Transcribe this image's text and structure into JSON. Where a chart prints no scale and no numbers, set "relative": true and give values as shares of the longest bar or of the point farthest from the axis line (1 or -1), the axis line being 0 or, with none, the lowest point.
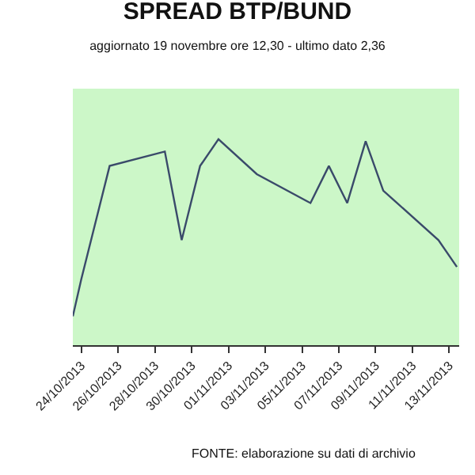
{
  "chart_data": {
    "type": "line",
    "title": "SPREAD BTP/BUND",
    "subtitle": "aggiornato 19 novembre ore 12,30 - ultimo dato 2,36",
    "annotations": [
      "FONTE: elaborazione su dati di archivio"
    ],
    "relative": true,
    "x": [
      "2013-10-23T13:00",
      "2013-10-24T00:00",
      "2013-10-25T13:00",
      "2013-10-28T13:00",
      "2013-10-29T11:00",
      "2013-10-30T11:00",
      "2013-10-31T11:00",
      "2013-11-02T13:00",
      "2013-11-05T11:00",
      "2013-11-06T11:00",
      "2013-11-07T11:00",
      "2013-11-08T11:00",
      "2013-11-09T10:00",
      "2013-11-12T10:00",
      "2013-11-13T10:00"
    ],
    "series": [
      {
        "color": "#3a4a6a",
        "values": [
          0.14,
          0.32,
          0.87,
          0.94,
          0.51,
          0.87,
          1.0,
          0.83,
          0.69,
          0.87,
          0.69,
          0.99,
          0.75,
          0.51,
          0.38
        ]
      }
    ],
    "xlim": [
      "2013-10-23T13:00",
      "2013-11-13T13:00"
    ],
    "xticks": [
      {
        "value": "2013-10-24",
        "label": "24/10/2013"
      },
      {
        "value": "2013-10-26",
        "label": "26/10/2013"
      },
      {
        "value": "2013-10-28",
        "label": "28/10/2013"
      },
      {
        "value": "2013-10-30",
        "label": "30/10/2013"
      },
      {
        "value": "2013-11-01",
        "label": "01/11/2013"
      },
      {
        "value": "2013-11-03",
        "label": "03/11/2013"
      },
      {
        "value": "2013-11-05",
        "label": "05/11/2013"
      },
      {
        "value": "2013-11-07",
        "label": "07/11/2013"
      },
      {
        "value": "2013-11-09",
        "label": "09/11/2013"
      },
      {
        "value": "2013-11-11",
        "label": "11/11/2013"
      },
      {
        "value": "2013-11-13",
        "label": "13/11/2013"
      }
    ],
    "marker": "none",
    "line_style": "solid"
  }
}
